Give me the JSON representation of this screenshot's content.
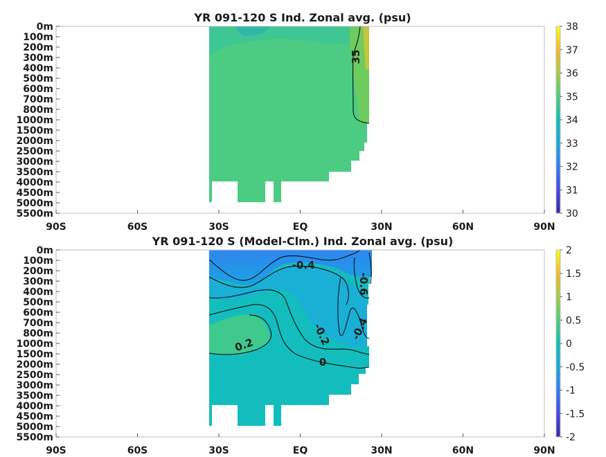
{
  "chart_data": [
    {
      "type": "heatmap",
      "title": "YR 091-120 S Ind. Zonal avg. (psu)",
      "xlabel": "",
      "ylabel": "",
      "x_ticks": [
        "90S",
        "60S",
        "30S",
        "EQ",
        "30N",
        "60N",
        "90N"
      ],
      "y_ticks": [
        "0m",
        "100m",
        "200m",
        "300m",
        "400m",
        "500m",
        "600m",
        "700m",
        "800m",
        "1000m",
        "1500m",
        "2000m",
        "2500m",
        "3000m",
        "3500m",
        "4000m",
        "4500m",
        "5000m",
        "5500m"
      ],
      "xlim": [
        -90,
        90
      ],
      "colorbar": {
        "min": 30,
        "max": 38,
        "ticks": [
          "30",
          "31",
          "32",
          "33",
          "34",
          "35",
          "36",
          "37",
          "38"
        ]
      },
      "contour_labels": [
        "35"
      ],
      "data_extent": {
        "lat_min": -35,
        "lat_max": 25
      },
      "dominant_values": [
        {
          "region": "interior",
          "value": 34.7
        },
        {
          "region": "surface near 20N",
          "value": 35.5
        },
        {
          "region": "surface near 20S",
          "value": 34.3
        }
      ]
    },
    {
      "type": "heatmap",
      "title": "YR 091-120 S (Model-Clm.) Ind. Zonal avg. (psu)",
      "xlabel": "",
      "ylabel": "",
      "x_ticks": [
        "90S",
        "60S",
        "30S",
        "EQ",
        "30N",
        "60N",
        "90N"
      ],
      "y_ticks": [
        "0m",
        "100m",
        "200m",
        "300m",
        "400m",
        "500m",
        "600m",
        "700m",
        "800m",
        "1000m",
        "1500m",
        "2000m",
        "2500m",
        "3000m",
        "3500m",
        "4000m",
        "4500m",
        "5000m",
        "5500m"
      ],
      "xlim": [
        -90,
        90
      ],
      "colorbar": {
        "min": -2,
        "max": 2,
        "ticks": [
          "-2",
          "-1.5",
          "-1",
          "-0.5",
          "0",
          "0.5",
          "1",
          "1.5",
          "2"
        ]
      },
      "contour_labels": [
        "-0.4",
        "-0.6",
        "-0.2",
        "-0.4",
        "0.2",
        "0"
      ],
      "data_extent": {
        "lat_min": -35,
        "lat_max": 25
      },
      "dominant_values": [
        {
          "region": "upper 300m",
          "value": -0.5
        },
        {
          "region": "interior",
          "value": -0.1
        },
        {
          "region": "30S 800-1500m",
          "value": 0.25
        }
      ]
    }
  ]
}
